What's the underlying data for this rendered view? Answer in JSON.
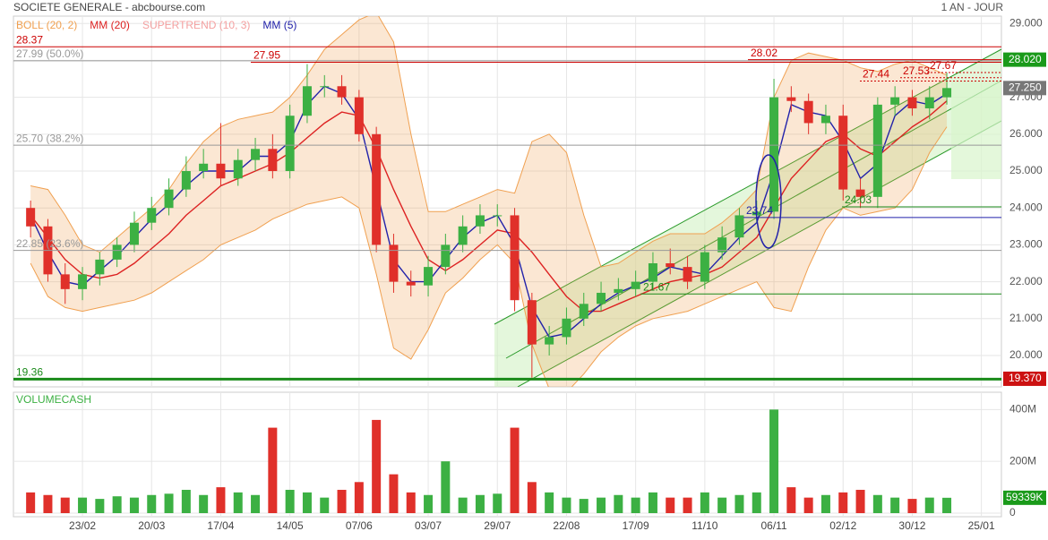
{
  "chart_data": {
    "type": "candlestick",
    "title": "SOCIETE GENERALE - abcbourse.com",
    "period": "1 AN - JOUR",
    "indicators": [
      {
        "label": "BOLL (20, 2)",
        "color": "#f0a050"
      },
      {
        "label": "MM (20)",
        "color": "#dd2222"
      },
      {
        "label": "SUPERTREND (10, 3)",
        "color": "#f4a0a0"
      },
      {
        "label": "MM (5)",
        "color": "#2222aa"
      }
    ],
    "categories": [
      null,
      null,
      null,
      "23/02",
      null,
      null,
      null,
      "20/03",
      null,
      null,
      null,
      "17/04",
      null,
      null,
      null,
      "14/05",
      null,
      null,
      null,
      "07/06",
      null,
      null,
      null,
      "03/07",
      null,
      null,
      null,
      "29/07",
      null,
      null,
      null,
      "22/08",
      null,
      null,
      null,
      "17/09",
      null,
      null,
      null,
      "11/10",
      null,
      null,
      null,
      "06/11",
      null,
      null,
      null,
      "02/12",
      null,
      null,
      null,
      "30/12",
      null,
      null,
      null,
      "25/01"
    ],
    "open": [
      24.0,
      23.5,
      22.2,
      21.8,
      22.2,
      22.6,
      23.0,
      23.6,
      24.0,
      24.5,
      25.0,
      25.2,
      24.8,
      25.3,
      25.6,
      25.0,
      26.5,
      27.3,
      27.3,
      27.0,
      26.0,
      23.0,
      22.0,
      21.9,
      22.4,
      23.0,
      23.5,
      23.8,
      23.8,
      21.5,
      20.3,
      20.5,
      21.0,
      21.4,
      21.7,
      21.8,
      22.0,
      22.5,
      22.4,
      22.0,
      22.8,
      23.2,
      23.8,
      23.9,
      27.0,
      26.9,
      26.3,
      26.5,
      24.5,
      24.3,
      26.8,
      27.0,
      26.7,
      27.0,
      null,
      null
    ],
    "high": [
      24.2,
      23.7,
      22.5,
      22.4,
      22.8,
      23.2,
      23.9,
      24.3,
      24.8,
      25.4,
      25.6,
      26.3,
      25.6,
      25.9,
      26.0,
      26.8,
      27.9,
      27.6,
      27.6,
      27.2,
      26.2,
      23.3,
      22.3,
      22.7,
      23.3,
      23.8,
      24.1,
      24.1,
      24.0,
      21.7,
      20.8,
      21.3,
      21.7,
      22.0,
      22.1,
      22.3,
      22.8,
      22.9,
      22.7,
      23.0,
      23.5,
      24.0,
      24.2,
      27.5,
      27.3,
      27.1,
      26.8,
      26.8,
      24.8,
      27.0,
      27.3,
      27.2,
      27.3,
      27.67,
      null,
      null
    ],
    "low": [
      23.2,
      22.0,
      21.4,
      21.5,
      21.9,
      22.4,
      22.8,
      23.4,
      23.8,
      24.3,
      24.8,
      24.6,
      24.6,
      25.0,
      24.8,
      24.8,
      26.3,
      27.0,
      26.8,
      25.8,
      22.8,
      21.7,
      21.6,
      21.6,
      22.2,
      22.8,
      23.3,
      23.5,
      21.2,
      19.4,
      20.0,
      20.3,
      20.8,
      21.2,
      21.5,
      21.6,
      21.8,
      22.2,
      21.8,
      21.8,
      22.6,
      23.0,
      23.6,
      23.7,
      26.6,
      26.0,
      26.0,
      24.2,
      24.0,
      24.0,
      26.5,
      26.5,
      26.4,
      26.8,
      null,
      null
    ],
    "close": [
      23.5,
      22.2,
      21.8,
      22.2,
      22.6,
      23.0,
      23.6,
      24.0,
      24.5,
      25.0,
      25.2,
      24.8,
      25.3,
      25.6,
      25.0,
      26.5,
      27.3,
      27.3,
      27.0,
      26.0,
      23.0,
      22.0,
      21.9,
      22.4,
      23.0,
      23.5,
      23.8,
      23.8,
      21.5,
      20.3,
      20.5,
      21.0,
      21.4,
      21.7,
      21.8,
      22.0,
      22.5,
      22.4,
      22.0,
      22.8,
      23.2,
      23.8,
      23.9,
      27.0,
      26.9,
      26.3,
      26.5,
      24.5,
      24.3,
      26.8,
      27.0,
      26.7,
      27.0,
      27.25,
      null,
      null
    ],
    "up_color": "#3cb043",
    "down_color": "#e0302a",
    "series": [
      {
        "indicator": 0,
        "part": "upper",
        "values": [
          24.6,
          24.5,
          23.8,
          23.0,
          22.8,
          23.2,
          23.6,
          24.0,
          24.5,
          25.2,
          25.8,
          26.2,
          26.4,
          26.5,
          26.6,
          27.0,
          27.6,
          28.3,
          28.7,
          29.1,
          29.3,
          28.5,
          26.0,
          23.9,
          23.9,
          24.1,
          24.3,
          24.5,
          24.4,
          25.8,
          26.0,
          25.5,
          23.8,
          22.4,
          22.5,
          22.8,
          23.1,
          23.3,
          23.3,
          23.3,
          23.6,
          24.0,
          24.5,
          27.0,
          28.0,
          28.2,
          28.1,
          28.0,
          27.8,
          27.7,
          27.9,
          28.0,
          27.8,
          27.6,
          null,
          null
        ]
      },
      {
        "indicator": 0,
        "part": "lower",
        "values": [
          22.5,
          21.6,
          21.3,
          21.2,
          21.3,
          21.4,
          21.5,
          21.7,
          22.0,
          22.3,
          22.6,
          23.0,
          23.2,
          23.4,
          23.7,
          23.9,
          24.1,
          24.2,
          24.3,
          24.0,
          22.2,
          20.2,
          19.9,
          20.7,
          21.7,
          22.1,
          22.6,
          23.0,
          22.5,
          20.3,
          19.1,
          19.0,
          19.5,
          20.1,
          20.5,
          20.8,
          21.0,
          21.1,
          21.2,
          21.4,
          21.6,
          21.8,
          22.0,
          21.3,
          21.2,
          22.4,
          23.4,
          24.0,
          23.8,
          23.9,
          24.0,
          24.5,
          25.5,
          26.2,
          null,
          null
        ]
      },
      {
        "indicator": 1,
        "values": [
          23.8,
          23.2,
          22.6,
          22.2,
          22.1,
          22.2,
          22.5,
          22.9,
          23.3,
          23.8,
          24.2,
          24.6,
          24.8,
          25.0,
          25.2,
          25.5,
          25.9,
          26.3,
          26.6,
          26.5,
          25.6,
          24.5,
          23.5,
          22.6,
          22.3,
          22.6,
          23.0,
          23.4,
          23.3,
          22.8,
          22.2,
          21.6,
          21.2,
          21.2,
          21.4,
          21.6,
          21.8,
          22.0,
          22.1,
          22.2,
          22.4,
          22.8,
          23.2,
          24.0,
          24.8,
          25.3,
          25.8,
          26.0,
          25.6,
          25.4,
          25.8,
          26.2,
          26.5,
          26.9,
          null,
          null
        ]
      },
      {
        "indicator": 3,
        "values": [
          23.8,
          22.8,
          22.0,
          21.9,
          22.3,
          22.7,
          23.2,
          23.7,
          24.1,
          24.6,
          25.0,
          25.0,
          25.0,
          25.4,
          25.4,
          25.8,
          26.8,
          27.3,
          27.1,
          26.4,
          24.5,
          22.6,
          22.0,
          22.0,
          22.6,
          23.2,
          23.6,
          23.8,
          23.0,
          21.3,
          20.5,
          20.6,
          21.0,
          21.4,
          21.7,
          21.9,
          22.1,
          22.4,
          22.3,
          22.2,
          22.7,
          23.2,
          23.6,
          25.0,
          26.8,
          26.6,
          26.5,
          25.8,
          24.8,
          25.2,
          26.5,
          26.9,
          26.8,
          27.1,
          null,
          null
        ]
      }
    ],
    "ylim": [
      19.15,
      29.2
    ],
    "yticks": [
      {
        "value": 20,
        "label": "20.000"
      },
      {
        "value": 21,
        "label": "21.000"
      },
      {
        "value": 22,
        "label": "22.000"
      },
      {
        "value": 23,
        "label": "23.000"
      },
      {
        "value": 24,
        "label": "24.000"
      },
      {
        "value": 25,
        "label": "25.000"
      },
      {
        "value": 26,
        "label": "26.000"
      },
      {
        "value": 27,
        "label": "27.000"
      },
      {
        "value": 28,
        "label": "28.000"
      },
      {
        "value": 29,
        "label": "29.000"
      }
    ],
    "levels": [
      {
        "value": 28.37,
        "label": "28.37",
        "color": "#cc0000"
      },
      {
        "value": 27.99,
        "label": "27.99 (50.0%)",
        "color": "#999999"
      },
      {
        "value": 27.95,
        "label": "27.95",
        "color": "#cc0000"
      },
      {
        "value": 28.02,
        "label": "28.02",
        "color": "#cc0000"
      },
      {
        "value": 25.7,
        "label": "25.70 (38.2%)",
        "color": "#999999"
      },
      {
        "value": 22.85,
        "label": "22.85 (23.6%)",
        "color": "#999999"
      },
      {
        "value": 19.36,
        "label": "19.36",
        "color": "#1a8a1a"
      },
      {
        "value": 24.03,
        "label": "24.03",
        "color": "#1a8a1a"
      },
      {
        "value": 23.74,
        "label": "23.74",
        "color": "#2222aa"
      },
      {
        "value": 21.67,
        "label": "21.67",
        "color": "#1a8a1a"
      },
      {
        "value": 27.44,
        "label": "27.44",
        "color": "#cc0000"
      },
      {
        "value": 27.53,
        "label": "27.53",
        "color": "#cc0000"
      },
      {
        "value": 27.67,
        "label": "27.67",
        "color": "#cc0000"
      }
    ],
    "price_tags": [
      {
        "value": 28.02,
        "label": "28.020",
        "color": "#1a9a1a"
      },
      {
        "value": 27.25,
        "label": "27.250",
        "color": "#777777"
      },
      {
        "value": 19.37,
        "label": "19.370",
        "color": "#cc1111"
      }
    ],
    "volume": {
      "title": "VOLUMECASH",
      "values": [
        80,
        70,
        60,
        60,
        55,
        65,
        60,
        70,
        75,
        90,
        70,
        100,
        80,
        70,
        330,
        90,
        80,
        60,
        90,
        120,
        360,
        150,
        80,
        70,
        200,
        60,
        70,
        75,
        330,
        120,
        80,
        60,
        55,
        60,
        70,
        60,
        80,
        60,
        60,
        80,
        60,
        70,
        80,
        400,
        100,
        60,
        70,
        80,
        90,
        70,
        60,
        55,
        60,
        59.339,
        null,
        null
      ],
      "last_label": "59339K",
      "ylim": [
        0,
        460
      ],
      "yticks": [
        0,
        {
          "value": 200,
          "label": "200M"
        },
        {
          "value": 400,
          "label": "400M"
        }
      ]
    }
  }
}
